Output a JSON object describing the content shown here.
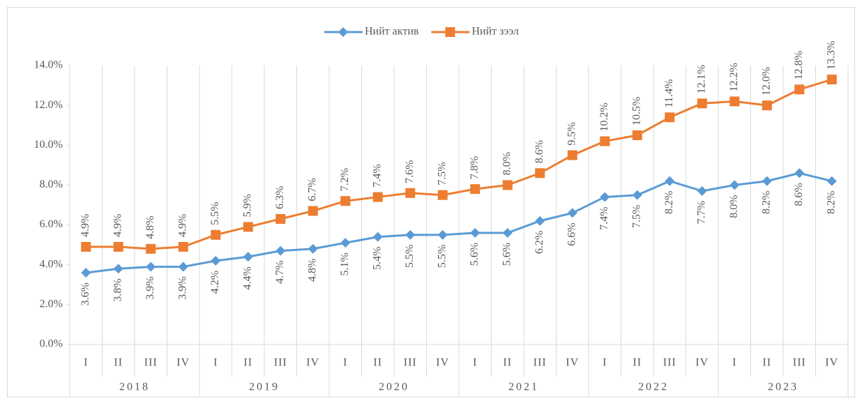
{
  "chart_data": {
    "type": "line",
    "categories": [
      "I",
      "II",
      "III",
      "IV",
      "I",
      "II",
      "III",
      "IV",
      "I",
      "II",
      "III",
      "IV",
      "I",
      "II",
      "III",
      "IV",
      "I",
      "II",
      "III",
      "IV",
      "I",
      "II",
      "III",
      "IV"
    ],
    "groups": [
      "2018",
      "2019",
      "2020",
      "2021",
      "2022",
      "2023"
    ],
    "series": [
      {
        "name": "Нийт актив",
        "color": "#5b9bd5",
        "marker": "diamond",
        "label_position": "below",
        "values": [
          3.6,
          3.8,
          3.9,
          3.9,
          4.2,
          4.4,
          4.7,
          4.8,
          5.1,
          5.4,
          5.5,
          5.5,
          5.6,
          5.6,
          6.2,
          6.6,
          7.4,
          7.5,
          8.2,
          7.7,
          8.0,
          8.2,
          8.6,
          8.2
        ],
        "value_labels": [
          "3.6%",
          "3.8%",
          "3.9%",
          "3.9%",
          "4.2%",
          "4.4%",
          "4.7%",
          "4.8%",
          "5.1%",
          "5.4%",
          "5.5%",
          "5.5%",
          "5.6%",
          "5.6%",
          "6.2%",
          "6.6%",
          "7.4%",
          "7.5%",
          "8.2%",
          "7.7%",
          "8.0%",
          "8.2%",
          "8.6%",
          "8.2%"
        ]
      },
      {
        "name": "Нийт зээл",
        "color": "#ed7d31",
        "marker": "square",
        "label_position": "above",
        "values": [
          4.9,
          4.9,
          4.8,
          4.9,
          5.5,
          5.9,
          6.3,
          6.7,
          7.2,
          7.4,
          7.6,
          7.5,
          7.8,
          8.0,
          8.6,
          9.5,
          10.2,
          10.5,
          11.4,
          12.1,
          12.2,
          12.0,
          12.8,
          13.3
        ],
        "value_labels": [
          "4.9%",
          "4.9%",
          "4.8%",
          "4.9%",
          "5.5%",
          "5.9%",
          "6.3%",
          "6.7%",
          "7.2%",
          "7.4%",
          "7.6%",
          "7.5%",
          "7.8%",
          "8.0%",
          "8.6%",
          "9.5%",
          "10.2%",
          "10.5%",
          "11.4%",
          "12.1%",
          "12.2%",
          "12.0%",
          "12.8%",
          "13.3%"
        ]
      }
    ],
    "ylim": [
      0,
      14
    ],
    "yticks": [
      {
        "value": 0,
        "label": "0.0%"
      },
      {
        "value": 2,
        "label": "2.0%"
      },
      {
        "value": 4,
        "label": "4.0%"
      },
      {
        "value": 6,
        "label": "6.0%"
      },
      {
        "value": 8,
        "label": "8.0%"
      },
      {
        "value": 10,
        "label": "10.0%"
      },
      {
        "value": 12,
        "label": "12.0%"
      },
      {
        "value": 14,
        "label": "14.0%"
      }
    ],
    "grid": false,
    "legend": "top"
  }
}
